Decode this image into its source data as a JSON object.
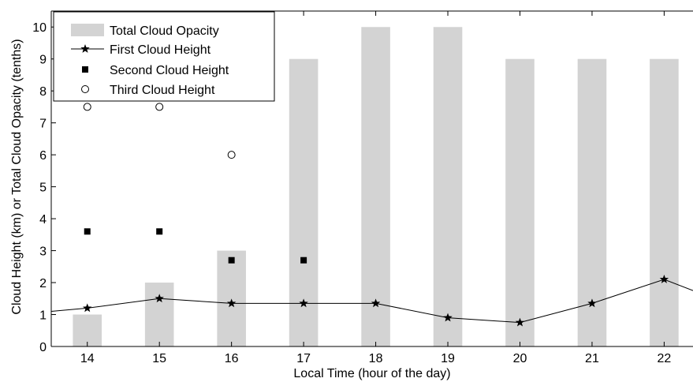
{
  "chart_data": {
    "type": "bar",
    "xlabel": "Local Time (hour of the day)",
    "ylabel": "Cloud Height (km) or Total Cloud Opacity (tenths)",
    "xlim": [
      13.5,
      22.4
    ],
    "ylim": [
      0,
      10.5
    ],
    "x_ticks": [
      14,
      15,
      16,
      17,
      18,
      19,
      20,
      21,
      22
    ],
    "y_ticks": [
      0,
      1,
      2,
      3,
      4,
      5,
      6,
      7,
      8,
      9,
      10
    ],
    "grid": false,
    "legend_position": "top-left",
    "colors": {
      "bar": "#d3d3d3",
      "line": "#000000",
      "marker": "#000000"
    },
    "bars": {
      "name": "Total Cloud Opacity",
      "x": [
        14,
        15,
        16,
        17,
        18,
        19,
        20,
        21,
        22
      ],
      "values": [
        1,
        2,
        3,
        9,
        10,
        10,
        9,
        9,
        9
      ]
    },
    "line": {
      "name": "First Cloud Height",
      "x": [
        13.5,
        14,
        15,
        16,
        17,
        18,
        19,
        20,
        21,
        22,
        22.4
      ],
      "values": [
        1.1,
        1.2,
        1.5,
        1.35,
        1.35,
        1.35,
        0.9,
        0.75,
        1.35,
        2.1,
        1.75
      ],
      "star_x": [
        14,
        15,
        16,
        17,
        18,
        19,
        20,
        21,
        22
      ]
    },
    "second": {
      "name": "Second Cloud Height",
      "x": [
        14,
        15,
        16,
        17
      ],
      "values": [
        3.6,
        3.6,
        2.7,
        2.7
      ]
    },
    "third": {
      "name": "Third Cloud Height",
      "x": [
        14,
        15,
        16
      ],
      "values": [
        7.5,
        7.5,
        6.0
      ]
    }
  }
}
